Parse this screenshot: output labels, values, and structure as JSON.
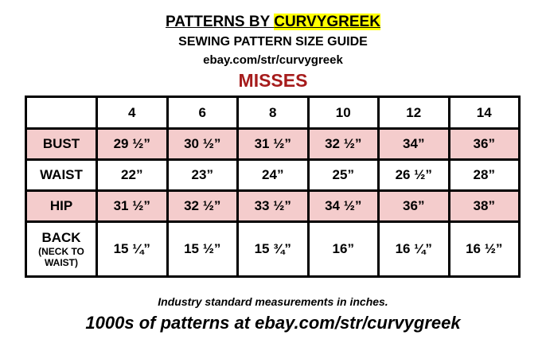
{
  "header": {
    "title_prefix": "PATTERNS BY ",
    "title_brand": "CURVYGREEK",
    "subtitle": "SEWING PATTERN SIZE GUIDE",
    "url": "ebay.com/str/curvygreek",
    "category": "MISSES"
  },
  "table": {
    "sizes": [
      "4",
      "6",
      "8",
      "10",
      "12",
      "14"
    ],
    "rows": [
      {
        "label": "BUST",
        "values": [
          "29 ½”",
          "30 ½”",
          "31 ½”",
          "32 ½”",
          "34”",
          "36”"
        ]
      },
      {
        "label": "WAIST",
        "values": [
          "22”",
          "23”",
          "24”",
          "25”",
          "26 ½”",
          "28”"
        ]
      },
      {
        "label": "HIP",
        "values": [
          "31 ½”",
          "32 ½”",
          "33 ½”",
          "34 ½”",
          "36”",
          "38”"
        ]
      },
      {
        "label": "BACK",
        "sublabel": "(NECK TO WAIST)",
        "values": [
          "15 ¼”",
          "15 ½”",
          "15 ¾”",
          "16”",
          "16 ¼”",
          "16 ½”"
        ]
      }
    ]
  },
  "footer": {
    "note": "Industry standard measurements in inches.",
    "promo": "1000s of patterns at ebay.com/str/curvygreek"
  },
  "colors": {
    "highlight": "#ffff00",
    "category": "#a61c1c",
    "row_pink": "#f4cccc"
  }
}
